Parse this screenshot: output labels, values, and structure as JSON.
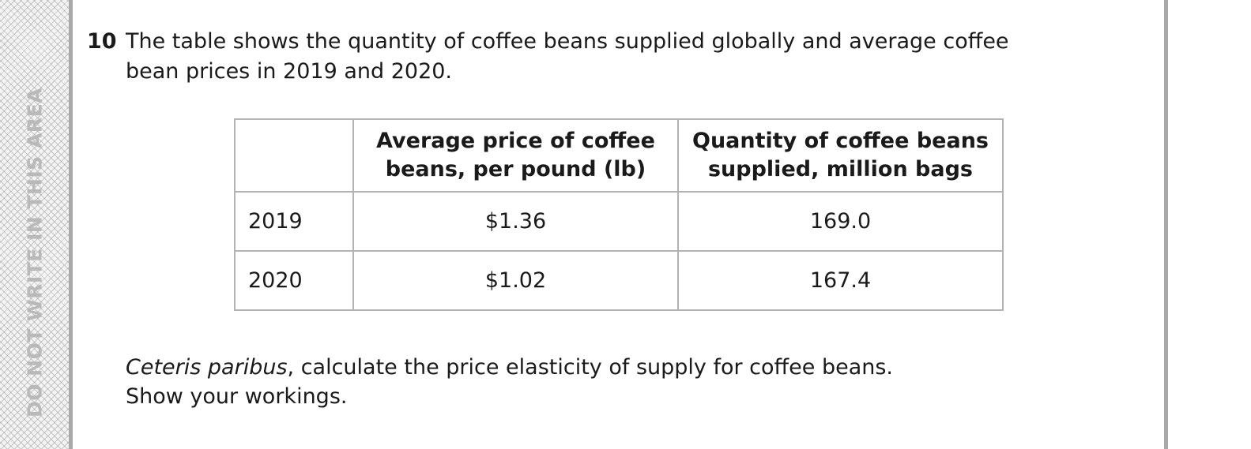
{
  "margin": {
    "warning_text": "DO NOT WRITE IN THIS AREA"
  },
  "question": {
    "number": "10",
    "text": "The table shows the quantity of coffee beans supplied globally and average coffee bean prices in 2019 and 2020."
  },
  "table": {
    "headers": {
      "year": "",
      "price": "Average price of coffee beans, per pound (lb)",
      "quantity": "Quantity of coffee beans supplied, million bags"
    },
    "rows": [
      {
        "year": "2019",
        "price": "$1.36",
        "quantity": "169.0"
      },
      {
        "year": "2020",
        "price": "$1.02",
        "quantity": "167.4"
      }
    ]
  },
  "instruction": {
    "italic_phrase": "Ceteris paribus",
    "rest": ", calculate the price elasticity of supply for coffee beans.",
    "line2": "Show your workings."
  }
}
